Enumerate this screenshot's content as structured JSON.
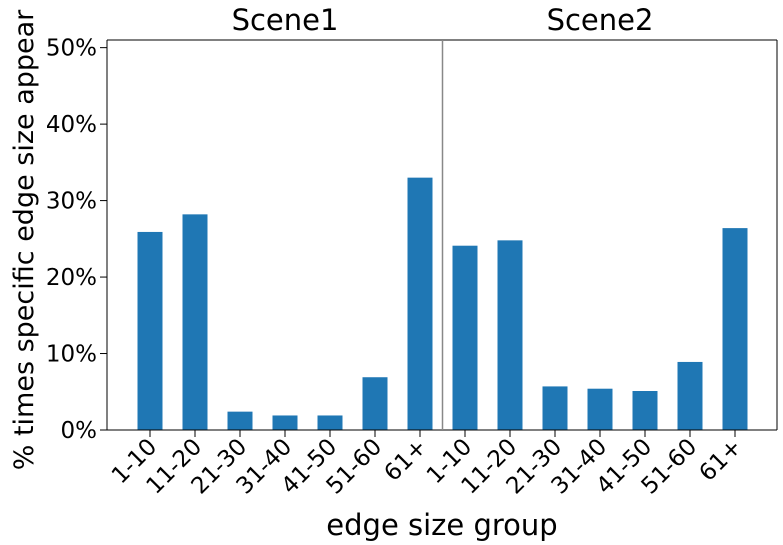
{
  "chart_data": {
    "type": "bar",
    "xlabel": "edge size group",
    "ylabel": "% times specific edge size appear",
    "ylim": [
      0,
      51
    ],
    "yticks": [
      "0%",
      "10%",
      "20%",
      "30%",
      "40%",
      "50%"
    ],
    "ytick_values": [
      0,
      10,
      20,
      30,
      40,
      50
    ],
    "grid": false,
    "bar_color": "#1f77b4",
    "panels": [
      {
        "title": "Scene1",
        "categories": [
          "1-10",
          "11-20",
          "21-30",
          "31-40",
          "41-50",
          "51-60",
          "61+"
        ],
        "values": [
          25.9,
          28.2,
          2.4,
          1.9,
          1.9,
          6.9,
          33.0
        ]
      },
      {
        "title": "Scene2",
        "categories": [
          "1-10",
          "11-20",
          "21-30",
          "31-40",
          "41-50",
          "51-60",
          "61+"
        ],
        "values": [
          24.1,
          24.8,
          5.7,
          5.4,
          5.1,
          8.9,
          26.4
        ]
      }
    ]
  }
}
